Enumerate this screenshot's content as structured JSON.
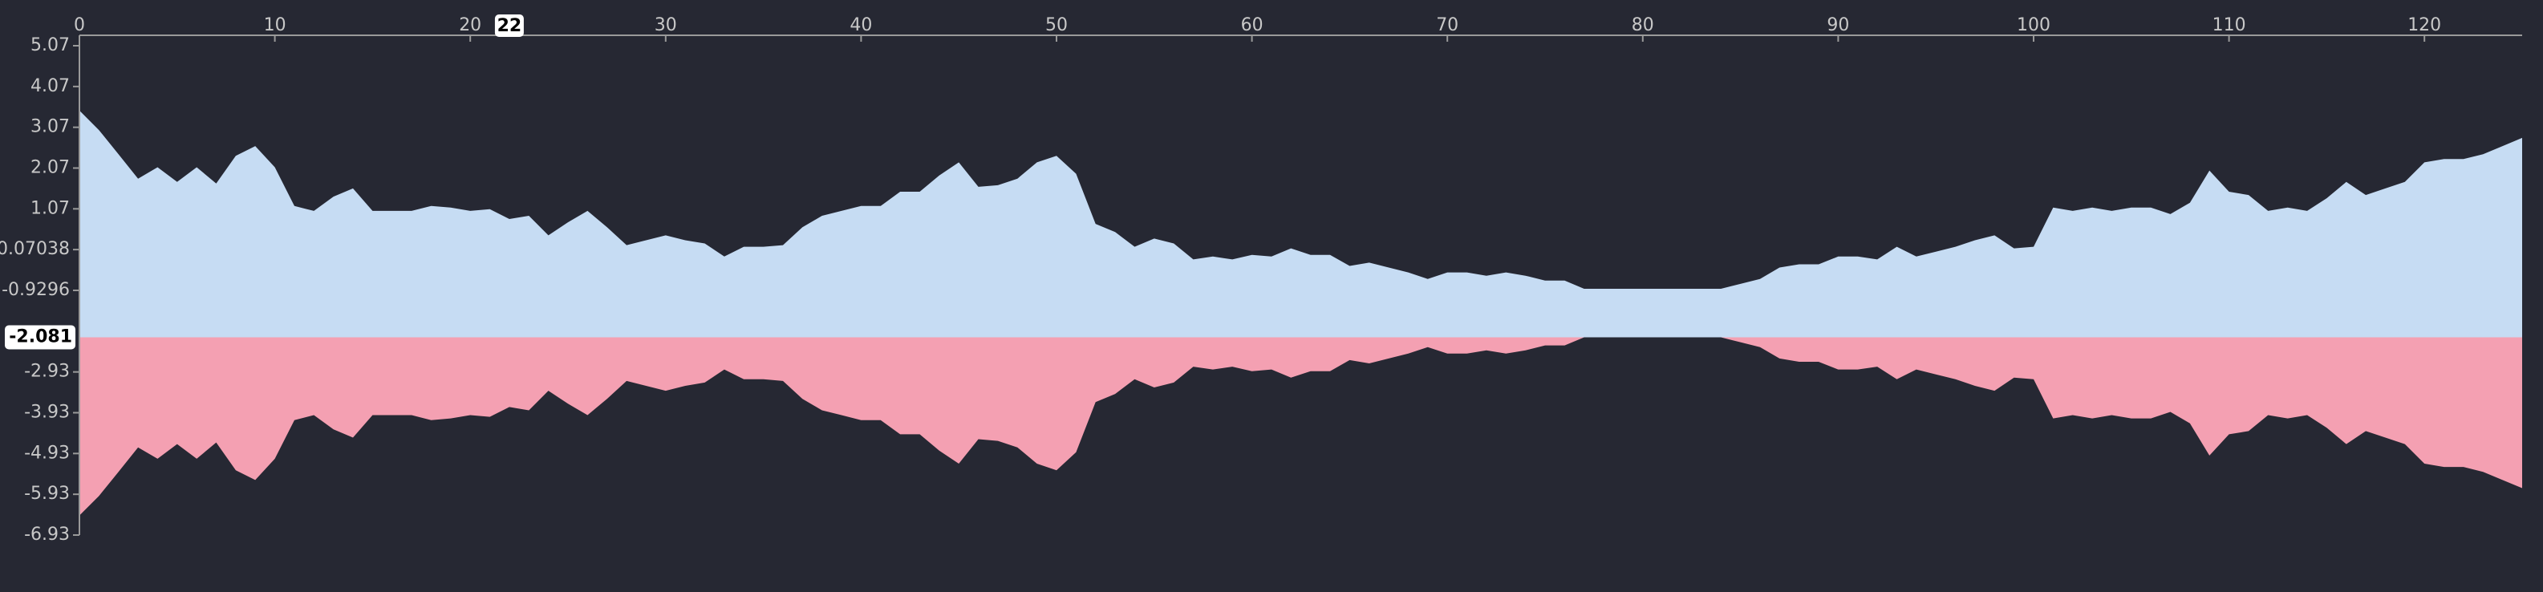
{
  "chart_data": {
    "type": "mirror-area",
    "x": [
      0,
      1,
      2,
      3,
      4,
      5,
      6,
      7,
      8,
      9,
      10,
      11,
      12,
      13,
      14,
      15,
      16,
      17,
      18,
      19,
      20,
      21,
      22,
      23,
      24,
      25,
      26,
      27,
      28,
      29,
      30,
      31,
      32,
      33,
      34,
      35,
      36,
      37,
      38,
      39,
      40,
      41,
      42,
      43,
      44,
      45,
      46,
      47,
      48,
      49,
      50,
      51,
      52,
      53,
      54,
      55,
      56,
      57,
      58,
      59,
      60,
      61,
      62,
      63,
      64,
      65,
      66,
      67,
      68,
      69,
      70,
      71,
      72,
      73,
      74,
      75,
      76,
      77,
      78,
      79,
      80,
      81,
      82,
      83,
      84,
      85,
      86,
      87,
      88,
      89,
      90,
      91,
      92,
      93,
      94,
      95,
      96,
      97,
      98,
      99,
      100,
      101,
      102,
      103,
      104,
      105,
      106,
      107,
      108,
      109,
      110,
      111,
      112,
      113,
      114,
      115,
      116,
      117,
      118,
      119,
      120,
      121,
      122,
      123,
      124,
      125
    ],
    "series": [
      {
        "color": "#c6dcf3",
        "values": [
          3.48,
          3.0,
          2.41,
          1.81,
          2.09,
          1.73,
          2.09,
          1.69,
          2.37,
          2.61,
          2.09,
          1.14,
          1.02,
          1.37,
          1.57,
          1.02,
          1.02,
          1.02,
          1.14,
          1.1,
          1.02,
          1.06,
          0.82,
          0.9,
          0.42,
          0.74,
          1.02,
          0.62,
          0.18,
          0.3,
          0.42,
          0.3,
          0.22,
          -0.1,
          0.14,
          0.14,
          0.18,
          0.62,
          0.9,
          1.02,
          1.14,
          1.14,
          1.49,
          1.49,
          1.89,
          2.21,
          1.61,
          1.65,
          1.81,
          2.21,
          2.37,
          1.93,
          0.7,
          0.5,
          0.14,
          0.34,
          0.22,
          -0.17,
          -0.1,
          -0.17,
          -0.06,
          -0.1,
          0.1,
          -0.06,
          -0.06,
          -0.33,
          -0.25,
          -0.37,
          -0.49,
          -0.65,
          -0.49,
          -0.49,
          -0.57,
          -0.49,
          -0.57,
          -0.69,
          -0.69,
          -0.89,
          -0.89,
          -0.89,
          -0.89,
          -0.89,
          -0.89,
          -0.89,
          -0.89,
          -0.77,
          -0.65,
          -0.37,
          -0.29,
          -0.29,
          -0.1,
          -0.1,
          -0.17,
          0.14,
          -0.1,
          0.02,
          0.14,
          0.3,
          0.42,
          0.1,
          0.14,
          1.1,
          1.02,
          1.1,
          1.02,
          1.1,
          1.1,
          0.94,
          1.22,
          2.01,
          1.49,
          1.41,
          1.02,
          1.1,
          1.02,
          1.33,
          1.73,
          1.41,
          1.57,
          1.73,
          2.21,
          2.29,
          2.29,
          2.41,
          2.61,
          2.81
        ]
      },
      {
        "color": "#f4a0b2",
        "values": [
          -6.45,
          -5.97,
          -5.38,
          -4.78,
          -5.06,
          -4.7,
          -5.06,
          -4.66,
          -5.34,
          -5.58,
          -5.06,
          -4.11,
          -3.99,
          -4.34,
          -4.54,
          -3.99,
          -3.99,
          -3.99,
          -4.11,
          -4.07,
          -3.99,
          -4.03,
          -3.79,
          -3.87,
          -3.39,
          -3.71,
          -3.99,
          -3.59,
          -3.15,
          -3.27,
          -3.39,
          -3.27,
          -3.19,
          -2.87,
          -3.11,
          -3.11,
          -3.15,
          -3.59,
          -3.87,
          -3.99,
          -4.11,
          -4.11,
          -4.46,
          -4.46,
          -4.86,
          -5.18,
          -4.58,
          -4.62,
          -4.78,
          -5.18,
          -5.34,
          -4.9,
          -3.67,
          -3.47,
          -3.11,
          -3.31,
          -3.19,
          -2.8,
          -2.87,
          -2.8,
          -2.91,
          -2.87,
          -3.07,
          -2.91,
          -2.91,
          -2.64,
          -2.72,
          -2.6,
          -2.48,
          -2.32,
          -2.48,
          -2.48,
          -2.4,
          -2.48,
          -2.4,
          -2.28,
          -2.28,
          -2.08,
          -2.08,
          -2.08,
          -2.08,
          -2.08,
          -2.08,
          -2.08,
          -2.08,
          -2.2,
          -2.32,
          -2.6,
          -2.68,
          -2.68,
          -2.87,
          -2.87,
          -2.8,
          -3.11,
          -2.87,
          -2.99,
          -3.11,
          -3.27,
          -3.39,
          -3.07,
          -3.11,
          -4.07,
          -3.99,
          -4.07,
          -3.99,
          -4.07,
          -4.07,
          -3.91,
          -4.19,
          -4.98,
          -4.46,
          -4.38,
          -3.99,
          -4.07,
          -3.99,
          -4.3,
          -4.7,
          -4.38,
          -4.54,
          -4.7,
          -5.18,
          -5.26,
          -5.26,
          -5.38,
          -5.58,
          -5.78
        ]
      }
    ],
    "xlim": [
      0,
      125
    ],
    "xticks": [
      0,
      10,
      20,
      30,
      40,
      50,
      60,
      70,
      80,
      90,
      100,
      110,
      120
    ],
    "ylim": [
      -6.93,
      5.07
    ],
    "yticks": [
      5.07,
      4.07,
      3.07,
      2.07,
      1.07,
      0.07038,
      -0.9296,
      -2.93,
      -3.93,
      -4.93,
      -5.93,
      -6.93
    ],
    "crosshair": {
      "x": 22,
      "y": -2.081
    }
  }
}
